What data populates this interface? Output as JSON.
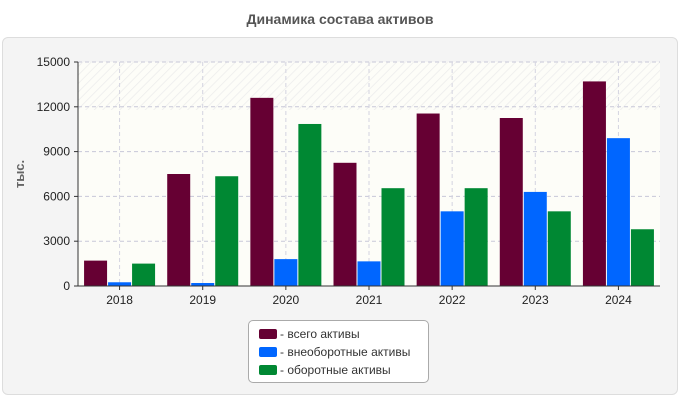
{
  "chart_data": {
    "type": "bar",
    "title": "Динамика состава активов",
    "xlabel": "",
    "ylabel": "тыс.",
    "categories": [
      "2018",
      "2019",
      "2020",
      "2021",
      "2022",
      "2023",
      "2024"
    ],
    "series": [
      {
        "name": "- всего активы",
        "color": "#660033",
        "values": [
          1700,
          7500,
          12600,
          8250,
          11550,
          11250,
          13700
        ]
      },
      {
        "name": "- внеоборотные активы",
        "color": "#0066ff",
        "values": [
          250,
          200,
          1800,
          1650,
          5000,
          6300,
          9900
        ]
      },
      {
        "name": "- оборотные активы",
        "color": "#008833",
        "values": [
          1500,
          7350,
          10850,
          6550,
          6550,
          5000,
          3800
        ]
      }
    ],
    "yticks": [
      "0",
      "3000",
      "6000",
      "9000",
      "12000",
      "15000"
    ],
    "ylim": [
      0,
      15000
    ],
    "grid": true,
    "legend_position": "bottom"
  }
}
